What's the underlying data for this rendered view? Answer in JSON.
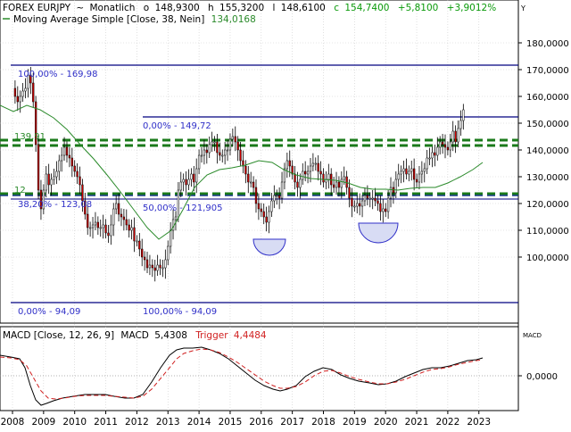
{
  "header": {
    "symbol": "FOREX EURJPY",
    "separator": "~",
    "period": "Monatlich",
    "open_label": "o",
    "open": "148,9300",
    "high_label": "h",
    "high": "155,3200",
    "low": "148,6100",
    "close_label": "c",
    "close": "154,7400",
    "change": "+5,8100",
    "change_pct": "+3,9012%",
    "indicator": "Moving Average Simple [Close, 38, Nein]",
    "indicator_value": "134,0168",
    "corner_label": "Y"
  },
  "colors": {
    "price": "#000000",
    "up_candle": "#ffffff",
    "down_candle": "#cc0000",
    "sma": "#2a8a2a",
    "fib_text": "#2f2fc8",
    "fib_line": "#000080",
    "support_dash": "#1a7a1a",
    "support_dash_blue": "#1a3a8a",
    "macd": "#000000",
    "trigger": "#d02020",
    "circle_fill": "#d8dcf4",
    "grid": "#cccccc",
    "change_green": "#0a9a0a"
  },
  "price_axis": {
    "ticks": [
      "180,0000",
      "170,0000",
      "160,0000",
      "150,0000",
      "140,0000",
      "130,0000",
      "120,0000",
      "110,0000",
      "100,0000"
    ],
    "tick_values": [
      180,
      170,
      160,
      150,
      140,
      130,
      120,
      110,
      100
    ],
    "range": [
      88,
      186
    ]
  },
  "fib_labels": {
    "a": "100,00% - 169,98",
    "b": "0,00% - 149,72",
    "c": "139,91",
    "d": "12",
    "e": "38,20% - 123,08",
    "f": "50,00% - 121,905",
    "g": "0,00% - 94,09",
    "h": "100,00% - 94,09"
  },
  "macd_panel": {
    "title": "MACD [Close, 12, 26, 9]",
    "macd_label": "MACD",
    "macd_value": "5,4308",
    "trigger_label": "Trigger",
    "trigger_value": "4,4484",
    "axis_title": "MACD",
    "zero_label": "0,0000"
  },
  "x_axis": {
    "years": [
      "2008",
      "2009",
      "2010",
      "2011",
      "2012",
      "2013",
      "2014",
      "2015",
      "2016",
      "2017",
      "2018",
      "2019",
      "2020",
      "2021",
      "2022",
      "2023"
    ]
  },
  "chart_data": {
    "type": "candlestick",
    "x_start": "2008-01",
    "interval": "month",
    "ylim": [
      88,
      186
    ],
    "close_series": [
      163,
      160,
      158,
      160,
      162,
      163,
      168,
      165,
      158,
      142,
      125,
      118,
      125,
      131,
      127,
      129,
      130,
      132,
      136,
      138,
      141,
      138,
      137,
      134,
      132,
      130,
      127,
      121,
      116,
      111,
      111,
      112,
      113,
      111,
      111,
      112,
      109,
      108,
      112,
      118,
      120,
      116,
      115,
      114,
      112,
      110,
      111,
      106,
      106,
      103,
      100,
      99,
      96,
      97,
      96,
      95,
      97,
      96,
      96,
      99,
      104,
      110,
      114,
      115,
      125,
      128,
      129,
      127,
      129,
      131,
      128,
      133,
      138,
      138,
      140,
      139,
      142,
      143,
      143,
      139,
      138,
      138,
      140,
      140,
      144,
      145,
      143,
      140,
      136,
      134,
      131,
      128,
      128,
      126,
      120,
      118,
      117,
      115,
      113,
      117,
      121,
      123,
      123,
      122,
      128,
      133,
      136,
      134,
      131,
      128,
      126,
      129,
      132,
      131,
      132,
      134,
      135,
      135,
      132,
      131,
      128,
      129,
      131,
      127,
      126,
      128,
      126,
      129,
      130,
      126,
      122,
      119,
      119,
      120,
      119,
      121,
      123,
      122,
      122,
      122,
      121,
      120,
      117,
      118,
      117,
      122,
      126,
      124,
      129,
      131,
      132,
      133,
      131,
      132,
      133,
      129,
      128,
      131,
      132,
      133,
      137,
      137,
      139,
      138,
      141,
      143,
      142,
      141,
      140,
      143,
      147,
      143,
      148,
      151,
      155
    ]
  }
}
